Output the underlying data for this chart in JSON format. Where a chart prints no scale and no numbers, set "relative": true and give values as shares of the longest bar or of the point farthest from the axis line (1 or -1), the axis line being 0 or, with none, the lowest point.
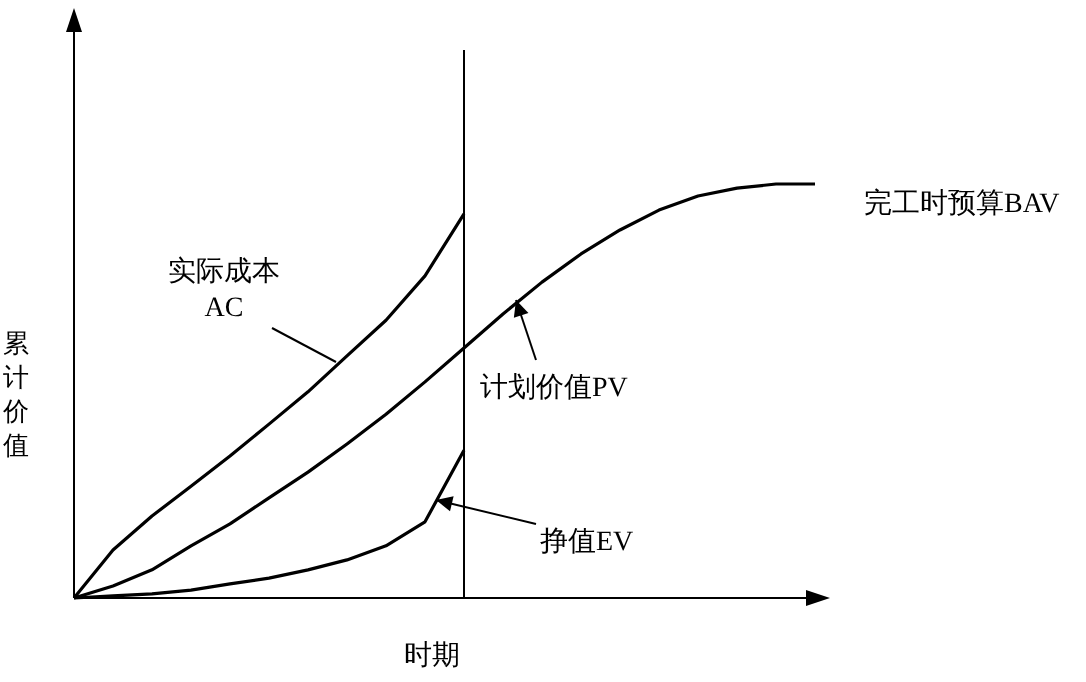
{
  "chart_data": {
    "type": "line",
    "relative": true,
    "xlabel": "时期",
    "ylabel": "累计价值",
    "categories": [
      null,
      null,
      null,
      null,
      null,
      null,
      null,
      null,
      null,
      null,
      null,
      null,
      null,
      null,
      null,
      null,
      null,
      null,
      null,
      null
    ],
    "series": [
      {
        "name": "实际成本\nAC",
        "color": "#000000",
        "values": [
          0,
          0.116,
          0.198,
          0.27,
          0.343,
          0.42,
          0.498,
          0.585,
          0.671,
          0.778,
          0.928,
          null,
          null,
          null,
          null,
          null,
          null,
          null,
          null,
          null
        ]
      },
      {
        "name": "计划价值PV",
        "color": "#000000",
        "values": [
          0,
          0.029,
          0.068,
          0.126,
          0.179,
          0.242,
          0.304,
          0.372,
          0.444,
          0.522,
          0.604,
          0.686,
          0.763,
          0.831,
          0.889,
          0.937,
          0.971,
          0.99,
          1,
          1
        ]
      },
      {
        "name": "挣值EV",
        "color": "#000000",
        "values": [
          0,
          0.005,
          0.01,
          0.019,
          0.034,
          0.048,
          0.068,
          0.092,
          0.126,
          0.184,
          0.357,
          null,
          null,
          null,
          null,
          null,
          null,
          null,
          null,
          null
        ]
      }
    ],
    "annotations": [
      "完工时预算BAV"
    ],
    "marker": "none",
    "line_style": "solid"
  }
}
